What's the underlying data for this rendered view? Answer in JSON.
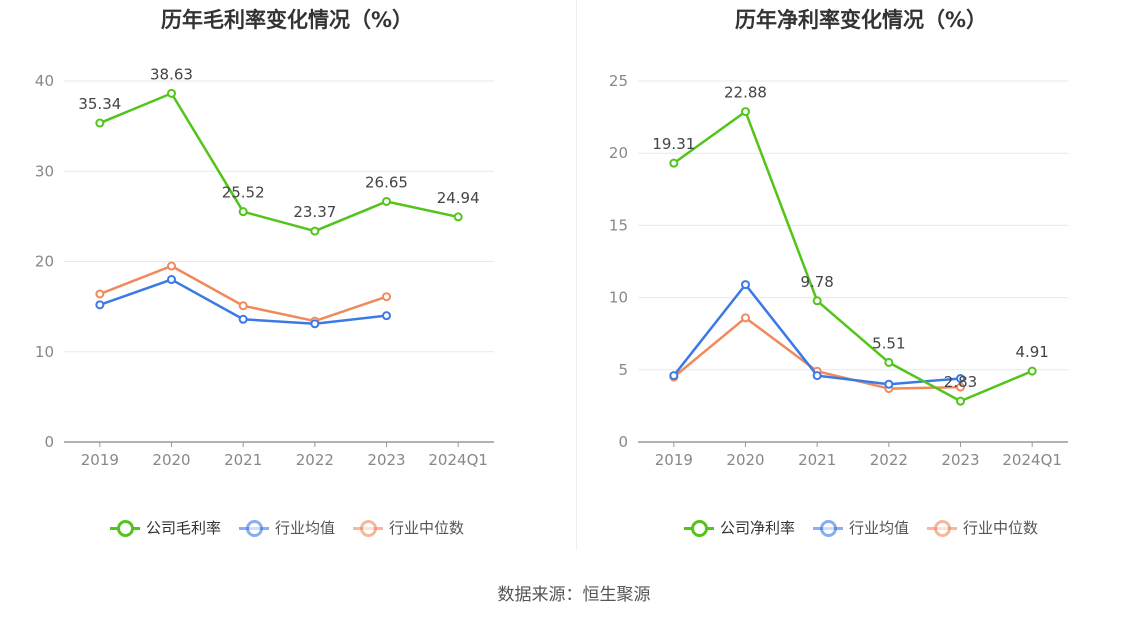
{
  "source_text": "数据来源：恒生聚源",
  "chart_data": [
    {
      "type": "line",
      "title": "历年毛利率变化情况（%）",
      "categories": [
        "2019",
        "2020",
        "2021",
        "2022",
        "2023",
        "2024Q1"
      ],
      "ylim": [
        0,
        40
      ],
      "yticks": [
        "0",
        "10",
        "20",
        "30",
        "40"
      ],
      "grid": true,
      "legend_position": "bottom",
      "series": [
        {
          "name": "公司毛利率",
          "color": "#52c41a",
          "labeled": true,
          "values": [
            35.34,
            38.63,
            25.52,
            23.37,
            26.65,
            24.94
          ],
          "labels": [
            "35.34",
            "38.63",
            "25.52",
            "23.37",
            "26.65",
            "24.94"
          ]
        },
        {
          "name": "行业均值",
          "color": "#3b7ae6",
          "labeled": false,
          "values": [
            15.2,
            18.0,
            13.6,
            13.1,
            14.0,
            null
          ]
        },
        {
          "name": "行业中位数",
          "color": "#f08a5d",
          "labeled": false,
          "values": [
            16.4,
            19.5,
            15.1,
            13.4,
            16.1,
            null
          ]
        }
      ]
    },
    {
      "type": "line",
      "title": "历年净利率变化情况（%）",
      "categories": [
        "2019",
        "2020",
        "2021",
        "2022",
        "2023",
        "2024Q1"
      ],
      "ylim": [
        0,
        25
      ],
      "yticks": [
        "0",
        "5",
        "10",
        "15",
        "20",
        "25"
      ],
      "grid": true,
      "legend_position": "bottom",
      "series": [
        {
          "name": "公司净利率",
          "color": "#52c41a",
          "labeled": true,
          "values": [
            19.31,
            22.88,
            9.78,
            5.51,
            2.83,
            4.91
          ],
          "labels": [
            "19.31",
            "22.88",
            "9.78",
            "5.51",
            "2.83",
            "4.91"
          ]
        },
        {
          "name": "行业均值",
          "color": "#3b7ae6",
          "labeled": false,
          "values": [
            4.6,
            10.9,
            4.6,
            4.0,
            4.4,
            null
          ]
        },
        {
          "name": "行业中位数",
          "color": "#f08a5d",
          "labeled": false,
          "values": [
            4.5,
            8.6,
            4.9,
            3.7,
            3.8,
            null
          ]
        }
      ]
    }
  ]
}
